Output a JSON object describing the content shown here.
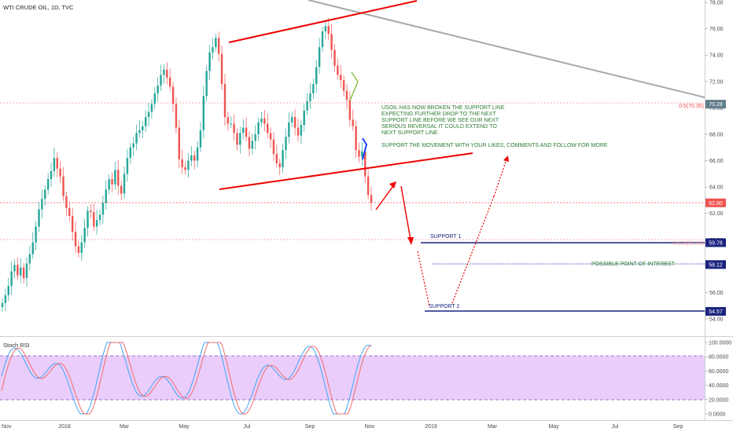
{
  "chart_data": {
    "type": "candlestick",
    "title": "WTI CRUDE OIL, 1D, TVC",
    "price_axis": {
      "ticks": [
        "78.00",
        "76.00",
        "74.00",
        "72.00",
        "70.00",
        "68.00",
        "66.00",
        "64.00",
        "62.00",
        "60.00",
        "58.00",
        "56.00",
        "54.00"
      ],
      "range": [
        53.0,
        79.2
      ]
    },
    "time_axis": {
      "labels": [
        "Nov",
        "2018",
        "Mar",
        "May",
        "Jul",
        "Sep",
        "Nov",
        "2019",
        "Mar",
        "May",
        "Jul",
        "Sep"
      ]
    },
    "price_badges": [
      {
        "value": 70.28,
        "text": "70.28",
        "color": "#607d8b"
      },
      {
        "value": 62.8,
        "text": "62.80",
        "color": "#ef5350"
      },
      {
        "value": 59.78,
        "text": "59.78",
        "color": "#1a237e"
      },
      {
        "value": 58.12,
        "text": "58.12",
        "color": "#1a237e"
      },
      {
        "value": 54.57,
        "text": "54.57",
        "color": "#1a237e"
      }
    ],
    "fib_levels": [
      {
        "label": "0.5(70.35)",
        "value": 70.35,
        "color": "#ef5350"
      },
      {
        "label": "0.618(59.99)",
        "value": 59.99,
        "color": "#ef5350"
      }
    ],
    "support_levels": [
      {
        "label": "SUPPORT 1",
        "value": 59.78
      },
      {
        "label": "SUPPORT 2",
        "value": 54.57
      }
    ],
    "interest_level": {
      "label": "POSSIBLE POINT OF INTEREST",
      "value": 58.12
    },
    "annotation_lines": [
      "USOIL HAS NOW BROKEN THE SUPPORT LINE",
      "EXPECTING FURTHER DROP TO THE NEXT",
      "SUPPORT LINE BEFORE WE SEE OUR NEXT",
      "SERIOUS REVERSAL IT COULD EXTEND TO",
      "NEXT SUPPORT LINE.",
      "",
      "SUPPORT THE MOVEMENT WITH YOUR LIKES, COMMENTS AND FOLLOW FOR MORE"
    ],
    "close_series": [
      55.2,
      55.8,
      56.5,
      57.6,
      58.1,
      57.3,
      57.9,
      57.1,
      58.2,
      58.9,
      59.8,
      61.0,
      62.3,
      63.1,
      63.8,
      64.6,
      65.2,
      66.2,
      65.4,
      64.8,
      63.3,
      62.4,
      61.8,
      60.6,
      59.5,
      59.0,
      59.8,
      60.9,
      62.2,
      62.1,
      61.0,
      61.5,
      61.9,
      62.8,
      63.8,
      64.6,
      64.2,
      65.3,
      64.1,
      63.5,
      65.0,
      66.2,
      67.0,
      67.3,
      68.1,
      68.3,
      68.6,
      69.3,
      69.7,
      70.3,
      71.1,
      71.7,
      72.5,
      72.9,
      72.3,
      71.6,
      70.3,
      68.5,
      66.1,
      65.5,
      65.3,
      66.0,
      66.4,
      66.0,
      67.0,
      68.3,
      70.9,
      72.8,
      74.2,
      74.6,
      75.3,
      74.1,
      71.8,
      69.3,
      68.8,
      68.8,
      68.1,
      67.2,
      68.1,
      68.5,
      67.8,
      66.9,
      67.5,
      68.0,
      68.9,
      69.2,
      68.8,
      68.1,
      67.6,
      66.5,
      65.8,
      65.5,
      66.8,
      67.8,
      68.9,
      69.3,
      68.5,
      67.9,
      68.7,
      69.8,
      70.5,
      71.1,
      71.8,
      73.1,
      74.6,
      75.8,
      76.2,
      75.6,
      74.4,
      73.2,
      72.5,
      72.1,
      71.3,
      70.6,
      69.1,
      68.6,
      66.8,
      66.3,
      66.7,
      64.8,
      63.4,
      62.8
    ],
    "stoch_rsi": {
      "label": "Stoch RSI",
      "ticks": [
        "100.0000",
        "80.0000",
        "60.0000",
        "40.0000",
        "20.0000",
        "0.0000"
      ],
      "upper_band": 80,
      "lower_band": 20
    }
  }
}
